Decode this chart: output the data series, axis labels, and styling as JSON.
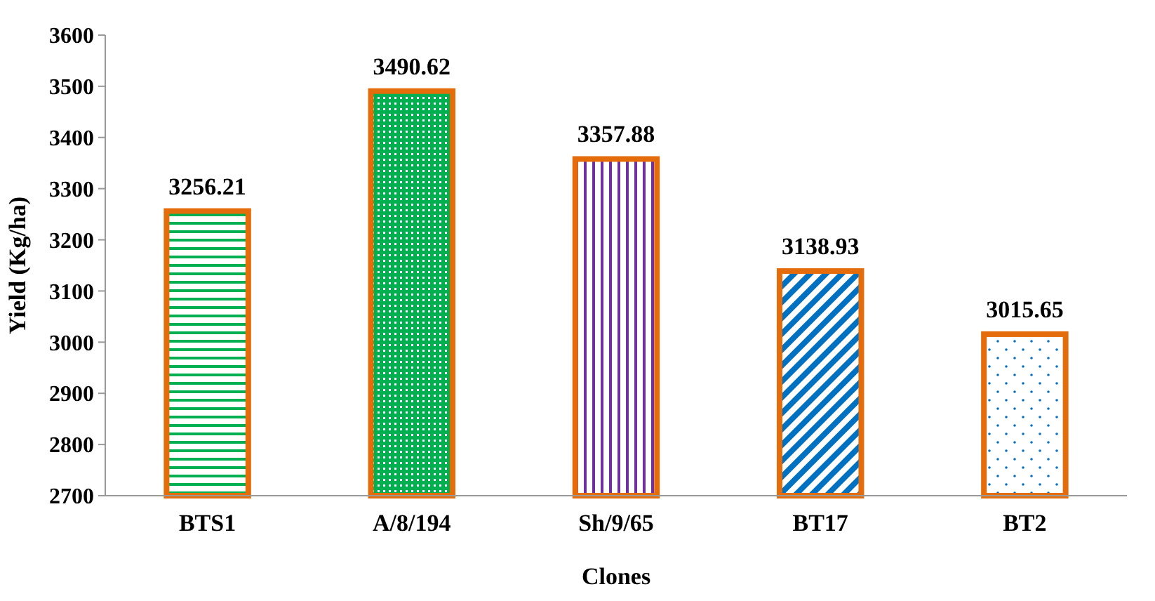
{
  "chart_data": {
    "type": "bar",
    "xlabel": "Clones",
    "ylabel": "Yield (Kg/ha)",
    "categories": [
      "BTS1",
      "A/8/194",
      "Sh/9/65",
      "BT17",
      "BT2"
    ],
    "values": [
      3256.21,
      3490.62,
      3357.88,
      3138.93,
      3015.65
    ],
    "colors": [
      "#e46c0a",
      "#e46c0a",
      "#e46c0a",
      "#e46c0a",
      "#e46c0a"
    ],
    "ylim": [
      2700,
      3600
    ],
    "yticks": [
      2700,
      2800,
      2900,
      3000,
      3100,
      3200,
      3300,
      3400,
      3500,
      3600
    ],
    "data_labels": true
  }
}
